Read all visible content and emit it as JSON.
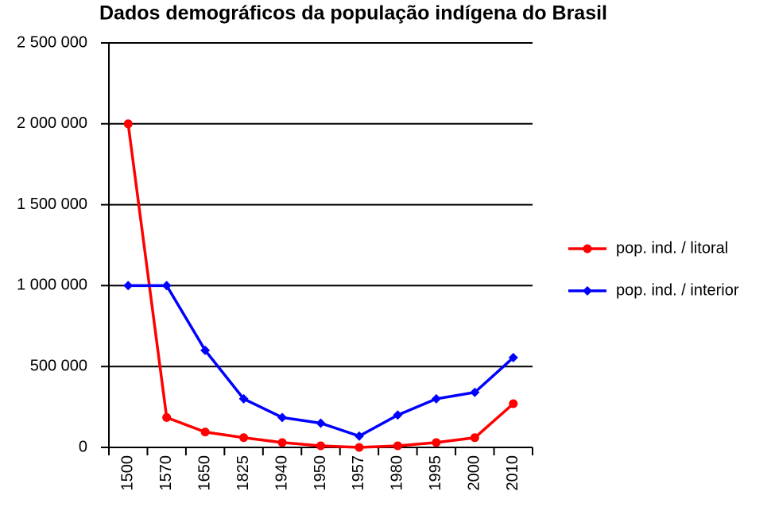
{
  "chart_data": {
    "type": "line",
    "title": "Dados demográficos da população indígena do Brasil",
    "categories": [
      "1500",
      "1570",
      "1650",
      "1825",
      "1940",
      "1950",
      "1957",
      "1980",
      "1995",
      "2000",
      "2010"
    ],
    "series": [
      {
        "name": "pop. ind. / litoral",
        "color": "#ff0000",
        "marker": "circle",
        "values": [
          2000000,
          185000,
          95000,
          60000,
          30000,
          10000,
          0,
          10000,
          30000,
          60000,
          270000
        ]
      },
      {
        "name": "pop. ind. / interior",
        "color": "#0000ff",
        "marker": "diamond",
        "values": [
          1000000,
          1000000,
          600000,
          300000,
          185000,
          150000,
          70000,
          200000,
          300000,
          340000,
          555000
        ]
      }
    ],
    "ylim": [
      0,
      2500000
    ],
    "yticks": [
      0,
      {
        "value": 500000,
        "label": "500 000"
      },
      {
        "value": 1000000,
        "label": "1 000 000"
      },
      {
        "value": 1500000,
        "label": "1 500 000"
      },
      {
        "value": 2000000,
        "label": "2 000 000"
      },
      {
        "value": 2500000,
        "label": "2 500 000"
      }
    ],
    "grid": true,
    "legend": "right"
  }
}
